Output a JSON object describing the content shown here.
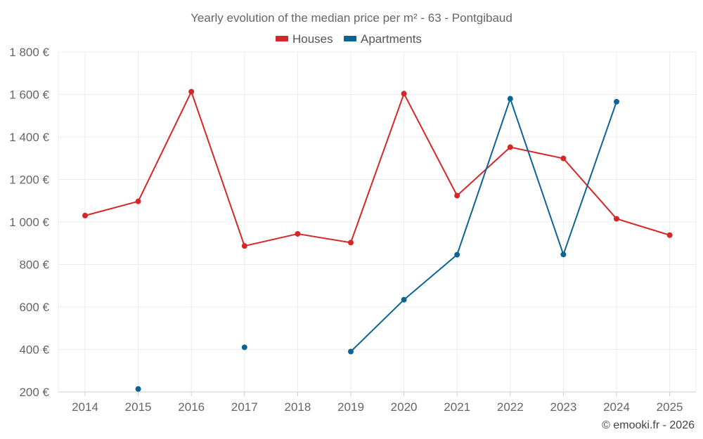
{
  "chart_data": {
    "type": "line",
    "title": "Yearly evolution of the median price per m² - 63 - Pontgibaud",
    "categories": [
      "2014",
      "2015",
      "2016",
      "2017",
      "2018",
      "2019",
      "2020",
      "2021",
      "2022",
      "2023",
      "2024",
      "2025"
    ],
    "xlabel": "",
    "ylabel": "",
    "ylim": [
      200,
      1800
    ],
    "yticks": [
      200,
      400,
      600,
      800,
      1000,
      1200,
      1400,
      1600,
      1800
    ],
    "ytick_labels": [
      "200 €",
      "400 €",
      "600 €",
      "800 €",
      "1 000 €",
      "1 200 €",
      "1 400 €",
      "1 600 €",
      "1 800 €"
    ],
    "grid": true,
    "legend_position": "top-center",
    "series": [
      {
        "name": "Houses",
        "color": "#d62728",
        "values": [
          1030,
          1097,
          1613,
          887,
          944,
          903,
          1604,
          1124,
          1352,
          1299,
          1015,
          938
        ]
      },
      {
        "name": "Apartments",
        "color": "#0b6494",
        "values": [
          null,
          214,
          null,
          410,
          null,
          390,
          634,
          846,
          1580,
          847,
          1566,
          null
        ]
      }
    ],
    "credit": "© emooki.fr - 2026"
  }
}
